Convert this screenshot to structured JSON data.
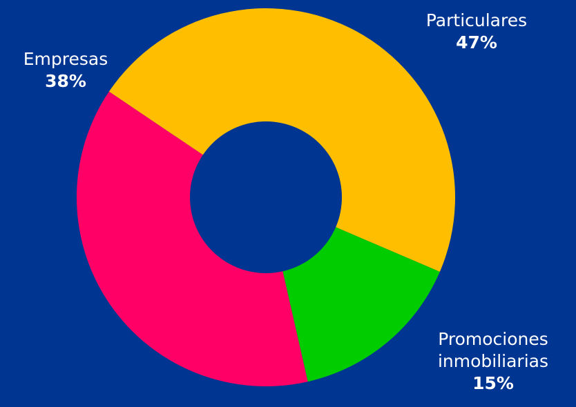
{
  "chart_data": {
    "type": "pie",
    "donut": true,
    "slices": [
      {
        "label": "Particulares",
        "value": 47,
        "display": "47%",
        "color": "#FFBE00"
      },
      {
        "label": "Promociones inmobiliarias",
        "label_lines": [
          "Promociones",
          "inmobiliarias"
        ],
        "value": 15,
        "display": "15%",
        "color": "#00CC00"
      },
      {
        "label": "Empresas",
        "value": 38,
        "display": "38%",
        "color": "#FF0066"
      }
    ],
    "background": "#003591",
    "hole_color": "#003591"
  }
}
